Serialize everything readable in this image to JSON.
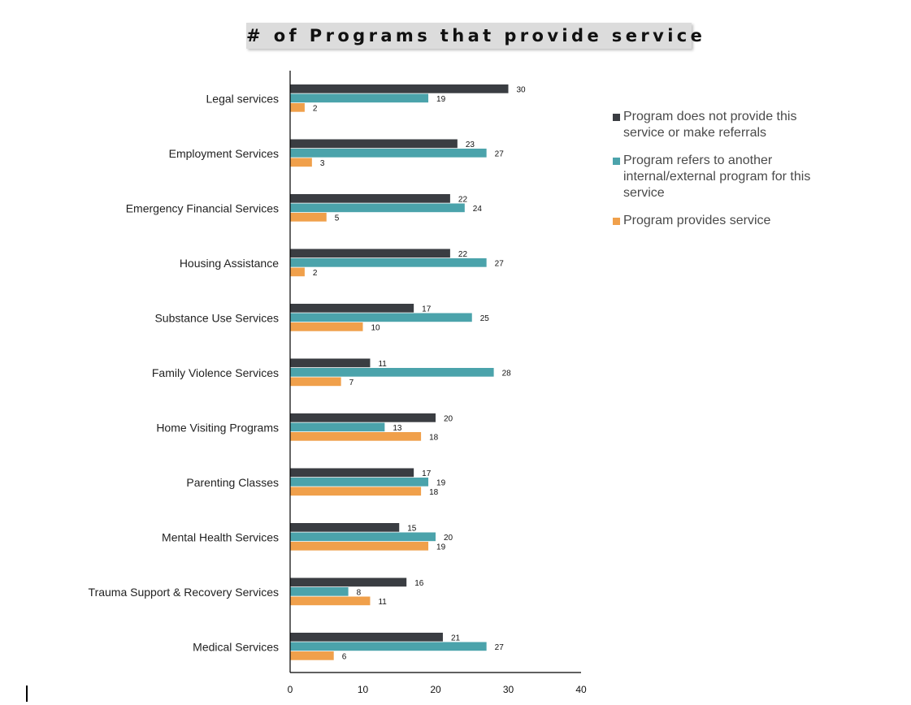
{
  "chart_data": {
    "type": "bar",
    "orientation": "horizontal",
    "title": "# of Programs that provide service",
    "categories": [
      "Legal services",
      "Employment Services",
      "Emergency Financial Services",
      "Housing Assistance",
      "Substance Use Services",
      "Family Violence Services",
      "Home Visiting Programs",
      "Parenting Classes",
      "Mental Health Services",
      "Trauma Support & Recovery Services",
      "Medical Services"
    ],
    "series": [
      {
        "name": "Program does not provide this service or make referrals",
        "color": "#3a3d42",
        "values": [
          30,
          23,
          22,
          22,
          17,
          11,
          20,
          17,
          15,
          16,
          21
        ]
      },
      {
        "name": "Program refers to another internal/external program for this service",
        "color": "#4ba3ab",
        "values": [
          19,
          27,
          24,
          27,
          25,
          28,
          13,
          19,
          20,
          8,
          27
        ]
      },
      {
        "name": "Program provides service",
        "color": "#f0a04b",
        "values": [
          2,
          3,
          5,
          2,
          10,
          7,
          18,
          18,
          19,
          11,
          6
        ]
      }
    ],
    "xlim": [
      0,
      40
    ],
    "xticks": [
      0,
      10,
      20,
      30,
      40
    ],
    "xlabel": "",
    "ylabel": "",
    "grid": false,
    "data_labels": true,
    "legend_position": "right"
  }
}
